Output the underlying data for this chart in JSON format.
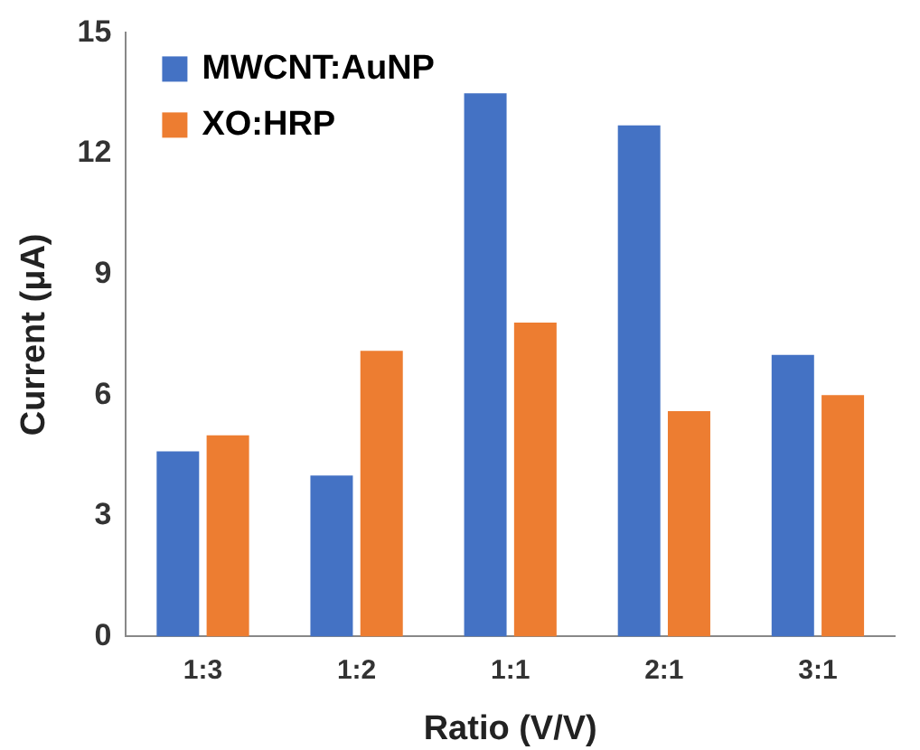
{
  "chart_data": {
    "type": "bar",
    "xlabel": "Ratio (V/V)",
    "ylabel": "Current (μA)",
    "categories": [
      "1:3",
      "1:2",
      "1:1",
      "2:1",
      "3:1"
    ],
    "series": [
      {
        "name": "MWCNT:AuNP",
        "color": "#4472c4",
        "values": [
          4.6,
          4.0,
          13.5,
          12.7,
          7.0
        ]
      },
      {
        "name": "XO:HRP",
        "color": "#ed7d31",
        "values": [
          5.0,
          7.1,
          7.8,
          5.6,
          6.0
        ]
      }
    ],
    "ylim": [
      0,
      15
    ],
    "yticks": [
      0,
      3,
      6,
      9,
      12,
      15
    ],
    "grid": false,
    "legend": "top left"
  }
}
